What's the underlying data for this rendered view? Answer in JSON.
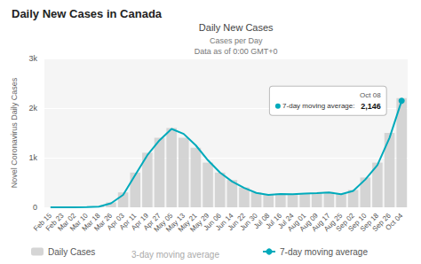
{
  "chart_data": {
    "type": "bar",
    "title": "Daily New Cases in Canada",
    "subtitle": [
      "Daily New Cases",
      "Cases per Day",
      "Data as of 0:00 GMT+0"
    ],
    "ylabel": "Novel Coronavirus Daily Cases",
    "categories": [
      "Feb 15",
      "Feb 23",
      "Mar 02",
      "Mar 10",
      "Mar 18",
      "Mar 26",
      "Apr 03",
      "Apr 11",
      "Apr 19",
      "Apr 27",
      "May 05",
      "May 13",
      "May 21",
      "May 29",
      "Jun 06",
      "Jun 14",
      "Jun 22",
      "Jun 30",
      "Jul 08",
      "Jul 16",
      "Jul 24",
      "Aug 01",
      "Aug 09",
      "Aug 17",
      "Aug 25",
      "Sep 02",
      "Sep 10",
      "Sep 18",
      "Sep 26",
      "Oct 04"
    ],
    "series": [
      {
        "name": "Daily Cases",
        "type": "bar",
        "color": "#d0d0d0",
        "values": [
          0,
          0,
          0,
          5,
          20,
          100,
          300,
          700,
          1100,
          1400,
          1600,
          1400,
          1200,
          900,
          700,
          550,
          400,
          300,
          250,
          280,
          270,
          280,
          290,
          310,
          270,
          350,
          600,
          900,
          1500,
          2200
        ]
      },
      {
        "name": "7-day moving average",
        "type": "line",
        "color": "#00aabb",
        "values": [
          0,
          0,
          0,
          3,
          15,
          80,
          250,
          650,
          1050,
          1350,
          1580,
          1480,
          1250,
          950,
          700,
          520,
          390,
          290,
          250,
          270,
          265,
          275,
          285,
          300,
          265,
          330,
          560,
          850,
          1400,
          2146
        ]
      }
    ],
    "ylim": [
      0,
      3000
    ],
    "yticks": [
      0,
      {
        "value": 1000,
        "label": "1k"
      },
      {
        "value": 2000,
        "label": "2k"
      },
      {
        "value": 3000,
        "label": "3k"
      }
    ],
    "grid": true,
    "legend": "bottom",
    "annotations": [
      {
        "x": "Oct 04",
        "y": 2146,
        "title": "Oct 08",
        "text": "7-day moving average:",
        "value_label": "2,146"
      },
      {
        "text": "3-day moving average"
      }
    ]
  }
}
